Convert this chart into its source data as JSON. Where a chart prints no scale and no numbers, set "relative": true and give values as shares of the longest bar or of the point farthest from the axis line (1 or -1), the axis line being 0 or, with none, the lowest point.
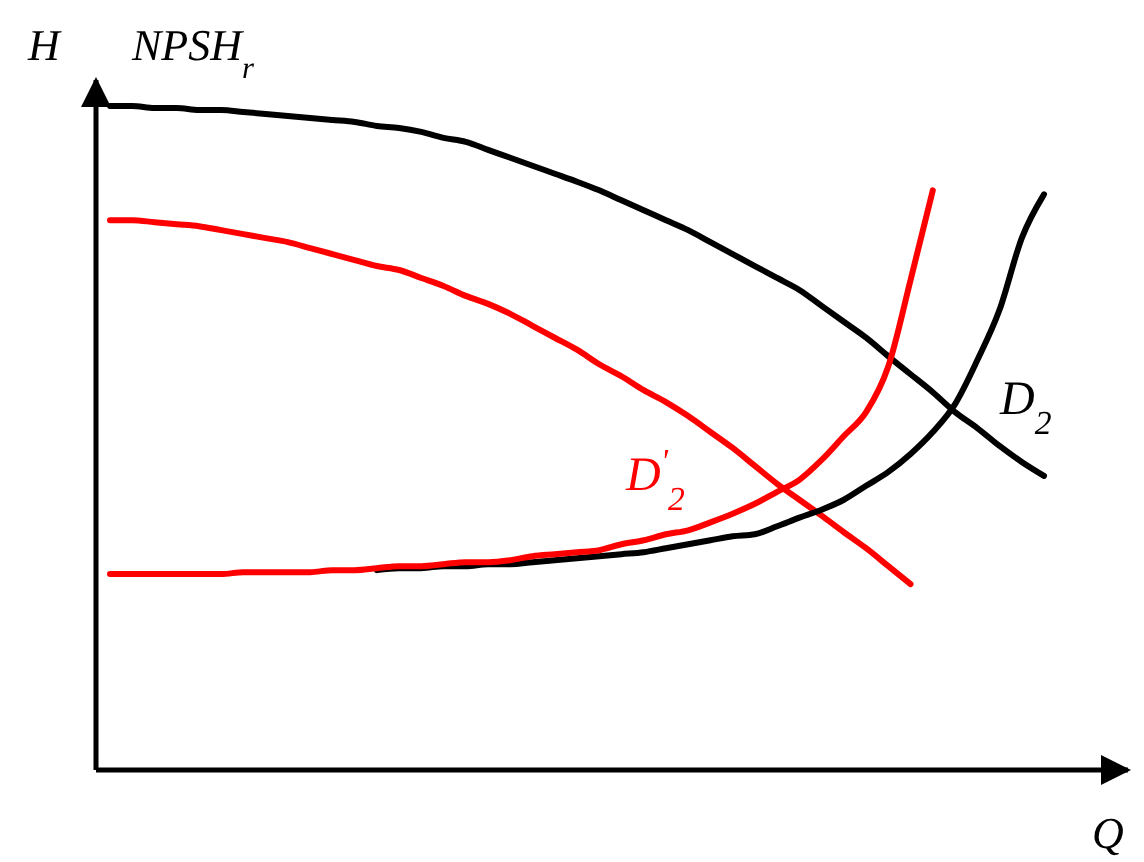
{
  "chart_data": {
    "type": "line",
    "relative": true,
    "ylabel": "H",
    "xlabel": "Q",
    "annotations": [
      "NPSH$_{r}$"
    ],
    "line_style": "solid",
    "categories": [
      null,
      null,
      null,
      null,
      null,
      null,
      null,
      null,
      null,
      null,
      null,
      null,
      null,
      null,
      null,
      null,
      null,
      null,
      null,
      null,
      null,
      null,
      null,
      null,
      null,
      null,
      null,
      null,
      null,
      null,
      null,
      null,
      null,
      null,
      null,
      null,
      null,
      null,
      null,
      null,
      null,
      null,
      null
    ],
    "series": [
      {
        "name": "D$_{2}$",
        "color": "#000000",
        "values": [
          1.0,
          1.0,
          0.997,
          0.997,
          0.994,
          0.994,
          0.991,
          0.988,
          0.985,
          0.982,
          0.979,
          0.976,
          0.97,
          0.967,
          0.961,
          0.952,
          0.946,
          0.934,
          0.922,
          0.91,
          0.898,
          0.886,
          0.873,
          0.858,
          0.843,
          0.828,
          0.813,
          0.795,
          0.777,
          0.759,
          0.741,
          0.723,
          0.699,
          0.675,
          0.651,
          0.623,
          0.596,
          0.569,
          0.539,
          0.515,
          0.488,
          0.464,
          0.443
        ]
      },
      {
        "name": "D$^{'}$$_{2}$",
        "color": "#ff0000",
        "values": [
          0.828,
          0.828,
          0.825,
          0.822,
          0.819,
          0.813,
          0.807,
          0.801,
          0.795,
          0.786,
          0.777,
          0.768,
          0.759,
          0.753,
          0.741,
          0.729,
          0.714,
          0.702,
          0.687,
          0.669,
          0.651,
          0.633,
          0.611,
          0.593,
          0.572,
          0.554,
          0.533,
          0.509,
          0.485,
          0.458,
          0.431,
          0.407,
          0.383,
          0.358,
          0.334,
          0.307,
          0.28,
          null,
          null,
          null,
          null,
          null,
          null
        ]
      },
      {
        "color": "#000000",
        "values": [
          null,
          null,
          null,
          null,
          null,
          null,
          null,
          null,
          null,
          null,
          null,
          null,
          0.301,
          0.304,
          0.304,
          0.307,
          0.307,
          0.31,
          0.31,
          0.313,
          0.316,
          0.319,
          0.322,
          0.325,
          0.328,
          0.334,
          0.34,
          0.346,
          0.352,
          0.355,
          0.367,
          0.38,
          0.392,
          0.407,
          0.428,
          0.449,
          0.476,
          0.509,
          0.551,
          0.617,
          0.693,
          0.801,
          0.867
        ]
      },
      {
        "color": "#ff0000",
        "values": [
          0.295,
          0.295,
          0.295,
          0.295,
          0.295,
          0.295,
          0.298,
          0.298,
          0.298,
          0.298,
          0.301,
          0.301,
          0.304,
          0.307,
          0.307,
          0.31,
          0.313,
          0.313,
          0.316,
          0.322,
          0.325,
          0.328,
          0.331,
          0.34,
          0.346,
          0.355,
          0.361,
          0.373,
          0.386,
          0.401,
          0.419,
          0.437,
          0.467,
          0.503,
          0.539,
          0.608,
          0.738,
          0.873,
          null,
          null,
          null,
          null,
          null
        ]
      }
    ]
  }
}
